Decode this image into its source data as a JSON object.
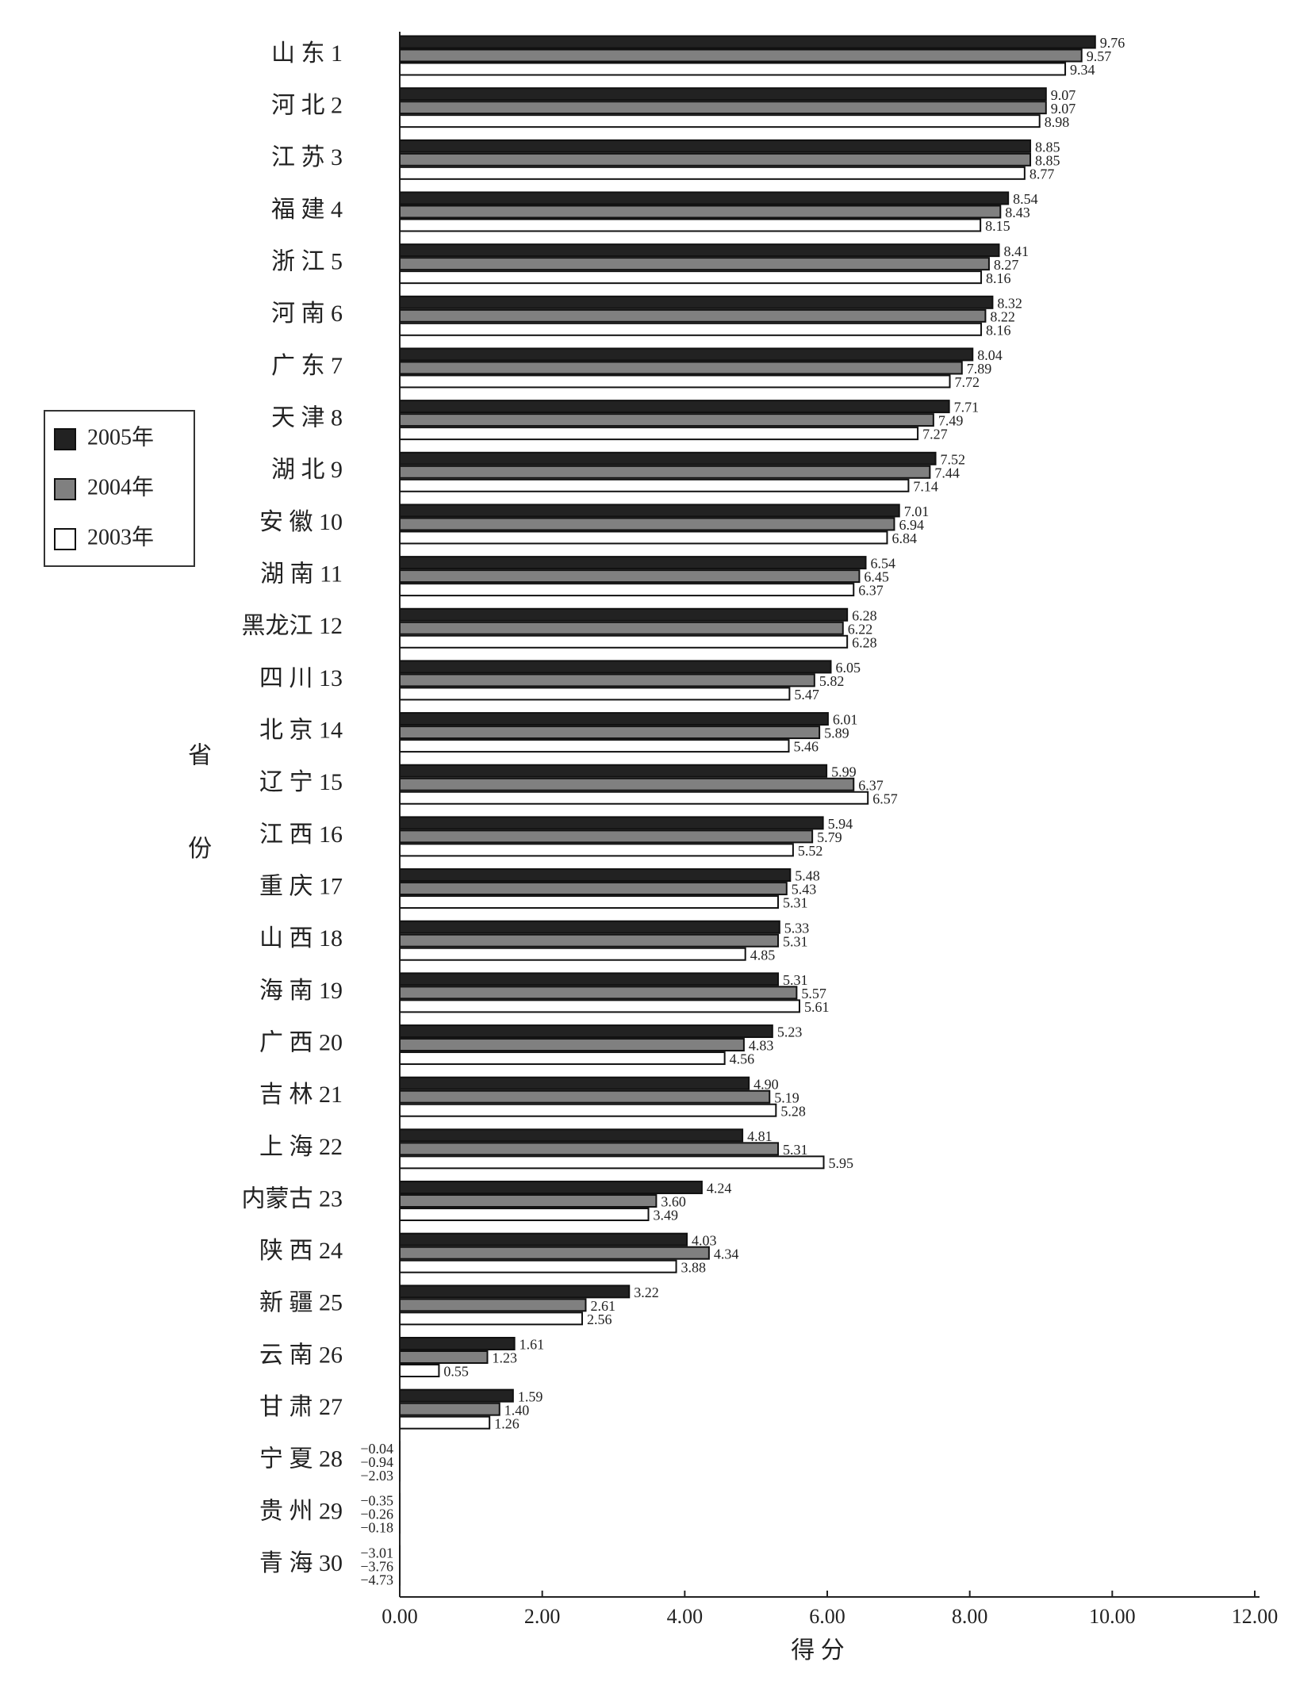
{
  "chart_data": {
    "type": "bar",
    "orientation": "horizontal",
    "categories": [
      "山 东 1",
      "河 北 2",
      "江 苏 3",
      "福 建 4",
      "浙 江 5",
      "河 南 6",
      "广 东 7",
      "天 津 8",
      "湖 北 9",
      "安 徽 10",
      "湖 南 11",
      "黑龙江 12",
      "四 川 13",
      "北 京 14",
      "辽 宁 15",
      "江 西 16",
      "重 庆 17",
      "山 西 18",
      "海 南 19",
      "广 西 20",
      "吉 林 21",
      "上 海 22",
      "内蒙古 23",
      "陕 西 24",
      "新 疆 25",
      "云 南 26",
      "甘 肃 27",
      "宁 夏 28",
      "贵 州 29",
      "青 海 30"
    ],
    "series": [
      {
        "name": "2005年",
        "color": "#222222",
        "values": [
          9.76,
          9.07,
          8.85,
          8.54,
          8.41,
          8.32,
          8.04,
          7.71,
          7.52,
          7.01,
          6.54,
          6.28,
          6.05,
          6.01,
          5.99,
          5.94,
          5.48,
          5.33,
          5.31,
          5.23,
          4.9,
          4.81,
          4.24,
          4.03,
          3.22,
          1.61,
          1.59,
          -0.04,
          -0.35,
          -3.01
        ],
        "value_labels": [
          "9.76",
          "9.07",
          "8.85",
          "8.54",
          "8.41",
          "8.32",
          "8.04",
          "7.71",
          "7.52",
          "7.01",
          "6.54",
          "6.28",
          "6.05",
          "6.01",
          "5.99",
          "5.94",
          "5.48",
          "5.33",
          "5.31",
          "5.23",
          "4.90",
          "4.81",
          "4.24",
          "4.03",
          "3.22",
          "1.61",
          "1.59",
          "−0.04",
          "−0.35",
          "−3.01"
        ]
      },
      {
        "name": "2004年",
        "color": "#808080",
        "values": [
          9.57,
          9.07,
          8.85,
          8.43,
          8.27,
          8.22,
          7.89,
          7.49,
          7.44,
          6.94,
          6.45,
          6.22,
          5.82,
          5.89,
          6.37,
          5.79,
          5.43,
          5.31,
          5.57,
          4.83,
          5.19,
          5.31,
          3.6,
          4.34,
          2.61,
          1.23,
          1.4,
          -0.94,
          -0.26,
          -3.76
        ],
        "value_labels": [
          "9.57",
          "9.07",
          "8.85",
          "8.43",
          "8.27",
          "8.22",
          "7.89",
          "7.49",
          "7.44",
          "6.94",
          "6.45",
          "6.22",
          "5.82",
          "5.89",
          "6.37",
          "5.79",
          "5.43",
          "5.31",
          "5.57",
          "4.83",
          "5.19",
          "5.31",
          "3.60",
          "4.34",
          "2.61",
          "1.23",
          "1.40",
          "−0.94",
          "−0.26",
          "−3.76"
        ]
      },
      {
        "name": "2003年",
        "color": "#ffffff",
        "values": [
          9.34,
          8.98,
          8.77,
          8.15,
          8.16,
          8.16,
          7.72,
          7.27,
          7.14,
          6.84,
          6.37,
          6.28,
          5.47,
          5.46,
          6.57,
          5.52,
          5.31,
          4.85,
          5.61,
          4.56,
          5.28,
          5.95,
          3.49,
          3.88,
          2.56,
          0.55,
          1.26,
          -2.03,
          -0.18,
          -4.73
        ],
        "value_labels": [
          "9.34",
          "8.98",
          "8.77",
          "8.15",
          "8.16",
          "8.16",
          "7.72",
          "7.27",
          "7.14",
          "6.84",
          "6.37",
          "6.28",
          "5.47",
          "5.46",
          "6.57",
          "5.52",
          "5.31",
          "4.85",
          "5.61",
          "4.56",
          "5.28",
          "5.95",
          "3.49",
          "3.88",
          "2.56",
          "0.55",
          "1.26",
          "−2.03",
          "−0.18",
          "−4.73"
        ]
      }
    ],
    "xlim": [
      0,
      12
    ],
    "xticks": [
      {
        "value": 0,
        "label": "0.00"
      },
      {
        "value": 2,
        "label": "2.00"
      },
      {
        "value": 4,
        "label": "4.00"
      },
      {
        "value": 6,
        "label": "6.00"
      },
      {
        "value": 8,
        "label": "8.00"
      },
      {
        "value": 10,
        "label": "10.00"
      },
      {
        "value": 12,
        "label": "12.00"
      }
    ],
    "x_label": "得 分",
    "y_label": "省 份",
    "legend": "left"
  }
}
